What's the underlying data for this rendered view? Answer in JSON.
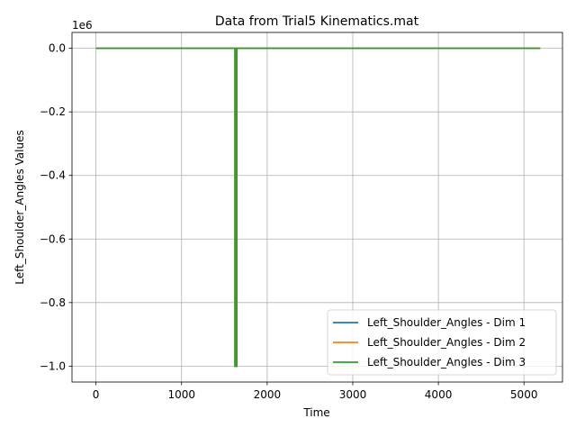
{
  "chart_data": {
    "type": "line",
    "title": "Data from Trial5 Kinematics.mat",
    "xlabel": "Time",
    "ylabel": "Left_Shoulder_Angles Values",
    "y_offset_label": "1e6",
    "xlim": [
      -280,
      5450
    ],
    "ylim": [
      -1.05,
      0.05
    ],
    "y_scale_factor": 1000000,
    "grid": true,
    "legend_position": "lower-right",
    "x_ticks": [
      0,
      1000,
      2000,
      3000,
      4000,
      5000
    ],
    "x_tick_labels": [
      "0",
      "1000",
      "2000",
      "3000",
      "4000",
      "5000"
    ],
    "y_ticks": [
      0.0,
      -0.2,
      -0.4,
      -0.6,
      -0.8,
      -1.0
    ],
    "y_tick_labels": [
      "0.0",
      "−0.2",
      "−0.4",
      "−0.6",
      "−0.8",
      "−1.0"
    ],
    "series": [
      {
        "name": "Left_Shoulder_Angles - Dim 1",
        "color": "#1f77b4",
        "x": [
          0,
          1625,
          1625,
          1645,
          1645,
          5190
        ],
        "y": [
          0,
          0,
          -1.0,
          -1.0,
          0,
          0
        ]
      },
      {
        "name": "Left_Shoulder_Angles - Dim 2",
        "color": "#ff7f0e",
        "x": [
          0,
          1625,
          1625,
          1645,
          1645,
          5190
        ],
        "y": [
          0,
          0,
          -1.0,
          -1.0,
          0,
          0
        ]
      },
      {
        "name": "Left_Shoulder_Angles - Dim 3",
        "color": "#2ca02c",
        "x": [
          0,
          1625,
          1625,
          1645,
          1645,
          5190
        ],
        "y": [
          0,
          0,
          -1.0,
          -1.0,
          0,
          0
        ]
      }
    ]
  }
}
